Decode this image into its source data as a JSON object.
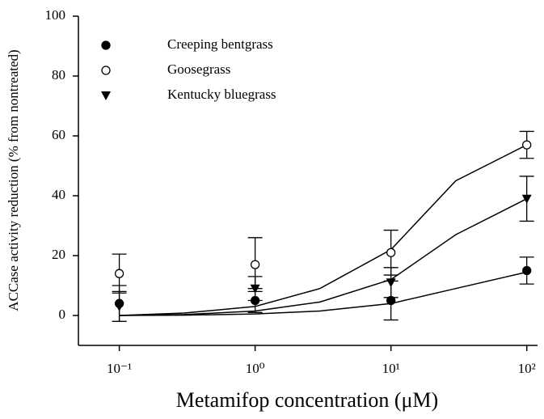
{
  "chart_data": {
    "type": "scatter",
    "xlabel": "Metamifop concentration (μM)",
    "ylabel": "ACCase activity reduction (% from nontreated)",
    "xscale": "log",
    "xlim": [
      0.05,
      120
    ],
    "ylim": [
      -10,
      100
    ],
    "xticks": [
      {
        "value": 0.1,
        "label": "10⁻¹"
      },
      {
        "value": 1,
        "label": "10⁰"
      },
      {
        "value": 10,
        "label": "10¹"
      },
      {
        "value": 100,
        "label": "10²"
      }
    ],
    "yticks": [
      0,
      20,
      40,
      60,
      80,
      100
    ],
    "legend": "upper left",
    "series": [
      {
        "name": "Creeping bentgrass",
        "color": "#000000",
        "marker": "circle-filled",
        "x": [
          0.1,
          1,
          10,
          100
        ],
        "values": [
          4,
          5,
          5,
          15
        ],
        "errors": [
          6,
          4,
          6.5,
          4.5
        ],
        "fit": {
          "x": [
            0.1,
            0.3,
            1,
            3,
            10,
            30,
            100
          ],
          "values": [
            0,
            0.1,
            0.5,
            1.5,
            4,
            9,
            14.5
          ]
        }
      },
      {
        "name": "Goosegrass",
        "color": "#000000",
        "marker": "circle-open",
        "x": [
          0.1,
          1,
          10,
          100
        ],
        "values": [
          14,
          17,
          21,
          57
        ],
        "errors": [
          6.5,
          9,
          7.5,
          4.5
        ],
        "fit": {
          "x": [
            0.1,
            0.3,
            1,
            3,
            10,
            30,
            100
          ],
          "values": [
            0,
            0.8,
            3,
            9,
            22,
            45,
            57
          ]
        }
      },
      {
        "name": "Kentucky bluegrass",
        "color": "#000000",
        "marker": "triangle-down",
        "x": [
          0.1,
          1,
          10,
          100
        ],
        "values": [
          3,
          9,
          11,
          39
        ],
        "errors": [
          5,
          4,
          5,
          7.5
        ],
        "fit": {
          "x": [
            0.1,
            0.3,
            1,
            3,
            10,
            30,
            100
          ],
          "values": [
            0,
            0.3,
            1.5,
            4.5,
            12,
            27,
            39
          ]
        }
      }
    ]
  }
}
